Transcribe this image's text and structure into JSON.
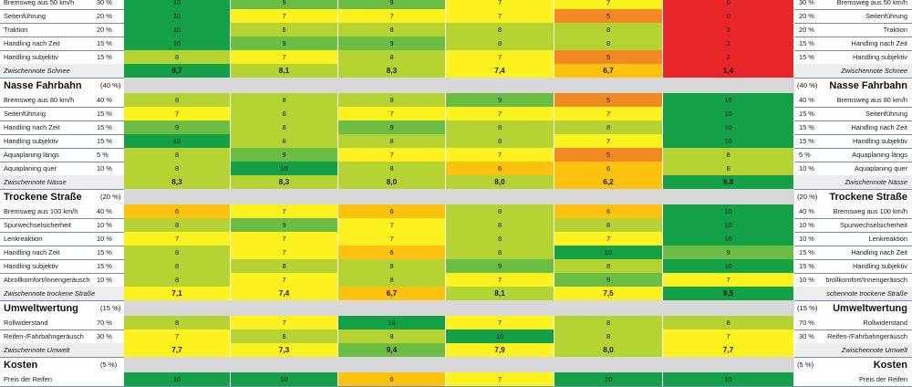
{
  "rows_top": [
    {
      "label": "Bremsweg aus 50 km/h",
      "pct": "30 %",
      "vals": [
        "10",
        "9",
        "9",
        "7",
        "7",
        "0"
      ],
      "rpct": "30 %",
      "rlabel": "Bremsweg aus 50 km/h"
    },
    {
      "label": "Seitenführung",
      "pct": "20 %",
      "vals": [
        "10",
        "7",
        "7",
        "7",
        "5",
        "0"
      ],
      "rpct": "20 %",
      "rlabel": "Seitenführung"
    },
    {
      "label": "Traktion",
      "pct": "20 %",
      "vals": [
        "10",
        "8",
        "8",
        "8",
        "8",
        "3"
      ],
      "rpct": "20 %",
      "rlabel": "Traktion"
    },
    {
      "label": "Handling nach Zeit",
      "pct": "15 %",
      "vals": [
        "10",
        "9",
        "9",
        "8",
        "8",
        "3"
      ],
      "rpct": "15 %",
      "rlabel": "Handling nach Zeit"
    },
    {
      "label": "Handling subjektiv",
      "pct": "15 %",
      "vals": [
        "8",
        "7",
        "8",
        "7",
        "5",
        "2"
      ],
      "rpct": "15 %",
      "rlabel": "Handling subjektiv"
    }
  ],
  "sum_schnee": {
    "label": "Zwischennote Schnee",
    "vals": [
      "9,7",
      "8,1",
      "8,3",
      "7,4",
      "6,7",
      "1,4"
    ],
    "rlabel": "Zwischennote Schnee"
  },
  "hdr_nass": {
    "title": "Nasse Fahrbahn",
    "pct": "(40 %)",
    "rpct": "(40 %)",
    "rtitle": "Nasse Fahrbahn"
  },
  "rows_nass": [
    {
      "label": "Bremsweg aus 80 km/h",
      "pct": "40 %",
      "vals": [
        "8",
        "8",
        "8",
        "9",
        "5",
        "10"
      ],
      "rpct": "40 %",
      "rlabel": "Bremsweg aus 80 km/h"
    },
    {
      "label": "Seitenführung",
      "pct": "15 %",
      "vals": [
        "7",
        "8",
        "7",
        "7",
        "7",
        "10"
      ],
      "rpct": "15 %",
      "rlabel": "Seitenführung"
    },
    {
      "label": "Handling nach Zeit",
      "pct": "15 %",
      "vals": [
        "9",
        "8",
        "9",
        "8",
        "8",
        "10"
      ],
      "rpct": "15 %",
      "rlabel": "Handling nach Zeit"
    },
    {
      "label": "Handling subjektiv",
      "pct": "15 %",
      "vals": [
        "10",
        "8",
        "8",
        "8",
        "7",
        "10"
      ],
      "rpct": "15 %",
      "rlabel": "Handling subjektiv"
    },
    {
      "label": "Aquaplaning längs",
      "pct": "5 %",
      "vals": [
        "8",
        "9",
        "7",
        "7",
        "5",
        "8"
      ],
      "rpct": "5 %",
      "rlabel": "Aquaplaning längs"
    },
    {
      "label": "Aquaplaning quer",
      "pct": "10 %",
      "vals": [
        "8",
        "10",
        "8",
        "6",
        "6",
        "8"
      ],
      "rpct": "10 %",
      "rlabel": "Aquaplaning quer"
    }
  ],
  "sum_nass": {
    "label": "Zwischennote Nässe",
    "vals": [
      "8,3",
      "8,3",
      "8,0",
      "8,0",
      "6,2",
      "9,8"
    ],
    "rlabel": "Zwischennote Nässe"
  },
  "hdr_trocken": {
    "title": "Trockene Straße",
    "pct": "(20 %)",
    "rpct": "(20 %)",
    "rtitle": "Trockene Straße"
  },
  "rows_trocken": [
    {
      "label": "Bremsweg aus 100 km/h",
      "pct": "40 %",
      "vals": [
        "6",
        "7",
        "6",
        "8",
        "6",
        "10"
      ],
      "rpct": "40 %",
      "rlabel": "Bremsweg aus 100 km/h"
    },
    {
      "label": "Spurwechselsicherheit",
      "pct": "10 %",
      "vals": [
        "8",
        "9",
        "7",
        "8",
        "8",
        "10"
      ],
      "rpct": "10 %",
      "rlabel": "Spurwechselsicherheit"
    },
    {
      "label": "Lenkreaktion",
      "pct": "10 %",
      "vals": [
        "7",
        "7",
        "7",
        "8",
        "7",
        "10"
      ],
      "rpct": "10 %",
      "rlabel": "Lenkreaktion"
    },
    {
      "label": "Handling nach Zeit",
      "pct": "15 %",
      "vals": [
        "8",
        "7",
        "6",
        "8",
        "10",
        "9"
      ],
      "rpct": "15 %",
      "rlabel": "Handling nach Zeit"
    },
    {
      "label": "Handling subjektiv",
      "pct": "15 %",
      "vals": [
        "8",
        "8",
        "8",
        "9",
        "8",
        "10"
      ],
      "rpct": "15 %",
      "rlabel": "Handling subjektiv"
    },
    {
      "label": "Abrollkomfort/Innengeräusch",
      "pct": "10 %",
      "vals": [
        "8",
        "7",
        "8",
        "7",
        "9",
        "7"
      ],
      "rpct": "10 %",
      "rlabel": "Abrollkomfort/Innengeräusch"
    }
  ],
  "sum_trocken": {
    "label": "Zwischennote trockene Straße",
    "vals": [
      "7,1",
      "7,4",
      "6,7",
      "8,1",
      "7,5",
      "9,5"
    ],
    "rlabel": "Zwischennote trockene Straße"
  },
  "hdr_umwelt": {
    "title": "Umweltwertung",
    "pct": "(15 %)",
    "rpct": "(15 %)",
    "rtitle": "Umweltwertung"
  },
  "rows_umwelt": [
    {
      "label": "Rollwiderstand",
      "pct": "70 %",
      "vals": [
        "8",
        "7",
        "10",
        "7",
        "8",
        "8"
      ],
      "rpct": "70 %",
      "rlabel": "Rollwiderstand"
    },
    {
      "label": "Reifen-/Fahrbahngeräusch",
      "pct": "30 %",
      "vals": [
        "7",
        "8",
        "8",
        "10",
        "8",
        "7"
      ],
      "rpct": "30 %",
      "rlabel": "Reifen-/Fahrbahngeräusch"
    }
  ],
  "sum_umwelt": {
    "label": "Zwischennote Umwelt",
    "vals": [
      "7,7",
      "7,3",
      "9,4",
      "7,9",
      "8,0",
      "7,7"
    ],
    "rlabel": "Zwischennote Umwelt"
  },
  "hdr_kosten": {
    "title": "Kosten",
    "pct": "(5 %)",
    "rpct": "(5 %)",
    "rtitle": "Kosten"
  },
  "rows_kosten": [
    {
      "label": "Preis der Reifen",
      "pct": "",
      "vals": [
        "10",
        "10",
        "6",
        "7",
        "10",
        "10"
      ],
      "rpct": "",
      "rlabel": "Preis der Reifen"
    }
  ],
  "colors": {
    "score_10": "#14a047",
    "score_9": "#6cbd43",
    "score_8": "#b5d434",
    "score_7": "#fbf21f",
    "score_6": "#fcc20f",
    "score_5": "#f28a23",
    "score_low": "#e8262a",
    "section_header_bg": "#d8d8d8",
    "grid_line": "#6f8fb0"
  }
}
